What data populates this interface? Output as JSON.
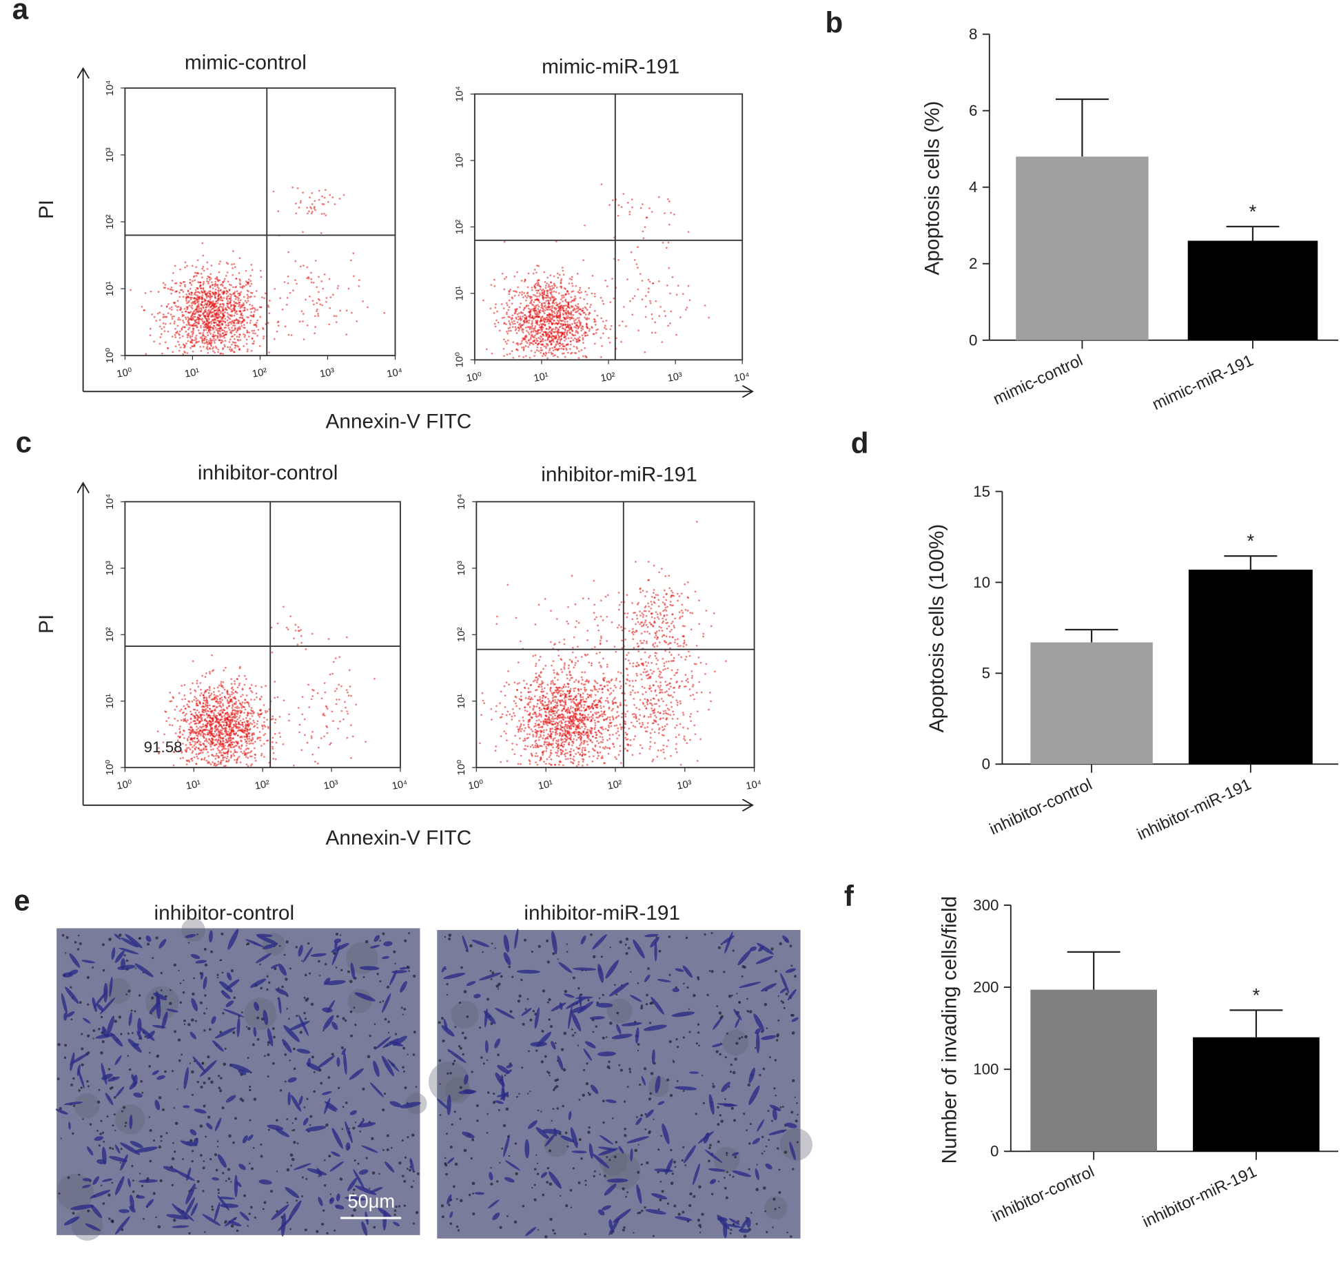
{
  "flow_cytometry": [
    {
      "panel_label": "a",
      "x_label": "Annexin-V  FITC",
      "y_label": "PI",
      "plots": [
        {
          "title": "mimic-control",
          "xlim": [
            1,
            10000
          ],
          "ylim": [
            1,
            10000
          ],
          "log_scale": true,
          "xticks": [
            {
              "value": 1,
              "label": "10⁰"
            },
            {
              "value": 10,
              "label": "10¹"
            },
            {
              "value": 100,
              "label": "10²"
            },
            {
              "value": 1000,
              "label": "10³"
            },
            {
              "value": 10000,
              "label": "10⁴"
            }
          ],
          "yticks": [
            {
              "value": 1,
              "label": "10⁰"
            },
            {
              "value": 10,
              "label": "10¹"
            },
            {
              "value": 100,
              "label": "10²"
            },
            {
              "value": 1000,
              "label": "10³"
            },
            {
              "value": 10000,
              "label": "10⁴"
            }
          ],
          "gate": [
            126,
            63
          ]
        },
        {
          "title": "mimic-miR-191",
          "xlim": [
            1,
            10000
          ],
          "ylim": [
            1,
            10000
          ],
          "log_scale": true,
          "xticks": [
            {
              "value": 1,
              "label": "10⁰"
            },
            {
              "value": 10,
              "label": "10¹"
            },
            {
              "value": 100,
              "label": "10²"
            },
            {
              "value": 1000,
              "label": "10³"
            },
            {
              "value": 10000,
              "label": "10⁴"
            }
          ],
          "yticks": [
            {
              "value": 1,
              "label": "10⁰"
            },
            {
              "value": 10,
              "label": "10¹"
            },
            {
              "value": 100,
              "label": "10²"
            },
            {
              "value": 1000,
              "label": "10³"
            },
            {
              "value": 10000,
              "label": "10⁴"
            }
          ],
          "gate": [
            126,
            63
          ]
        }
      ]
    },
    {
      "panel_label": "c",
      "x_label": "Annexin-V  FITC",
      "y_label": "PI",
      "plots": [
        {
          "title": "inhibitor-control",
          "xlim": [
            1,
            10000
          ],
          "ylim": [
            1,
            10000
          ],
          "log_scale": true,
          "xticks": [
            {
              "value": 1,
              "label": "10⁰"
            },
            {
              "value": 10,
              "label": "10¹"
            },
            {
              "value": 100,
              "label": "10²"
            },
            {
              "value": 1000,
              "label": "10³"
            },
            {
              "value": 10000,
              "label": "10⁴"
            }
          ],
          "yticks": [
            {
              "value": 1,
              "label": "10⁰"
            },
            {
              "value": 10,
              "label": "10¹"
            },
            {
              "value": 100,
              "label": "10²"
            },
            {
              "value": 1000,
              "label": "10³"
            },
            {
              "value": 10000,
              "label": "10⁴"
            }
          ],
          "gate": [
            129,
            67
          ],
          "annotation": "91.58"
        },
        {
          "title": "inhibitor-miR-191",
          "xlim": [
            1,
            10000
          ],
          "ylim": [
            1,
            10000
          ],
          "log_scale": true,
          "xticks": [
            {
              "value": 1,
              "label": "10⁰"
            },
            {
              "value": 10,
              "label": "10¹"
            },
            {
              "value": 100,
              "label": "10²"
            },
            {
              "value": 1000,
              "label": "10³"
            },
            {
              "value": 10000,
              "label": "10⁴"
            }
          ],
          "yticks": [
            {
              "value": 1,
              "label": "10⁰"
            },
            {
              "value": 10,
              "label": "10¹"
            },
            {
              "value": 100,
              "label": "10²"
            },
            {
              "value": 1000,
              "label": "10³"
            },
            {
              "value": 10000,
              "label": "10⁴"
            }
          ],
          "gate": [
            131,
            60
          ]
        }
      ]
    }
  ],
  "micrographs": {
    "panel_label": "e",
    "images": [
      {
        "title": "inhibitor-control"
      },
      {
        "title": "inhibitor-miR-191"
      }
    ],
    "scale_bar": "50μm"
  },
  "chart_data": [
    {
      "type": "bar",
      "panel_label": "b",
      "y_label": "Apoptosis cells (%)",
      "categories": [
        "mimic-control",
        "mimic-miR-191"
      ],
      "values": [
        4.8,
        2.6
      ],
      "errors": [
        1.5,
        0.37
      ],
      "colors": [
        "#a0a0a0",
        "#000000"
      ],
      "ylim": [
        0,
        8
      ],
      "yticks": [
        0,
        2,
        4,
        6,
        8
      ],
      "annotations": [
        {
          "category": "mimic-miR-191",
          "text": "*"
        }
      ]
    },
    {
      "type": "bar",
      "panel_label": "d",
      "y_label": "Apoptosis cells (100%)",
      "categories": [
        "inhibitor-control",
        "inhibitor-miR-191"
      ],
      "values": [
        6.7,
        10.7
      ],
      "errors": [
        0.7,
        0.75
      ],
      "colors": [
        "#a0a0a0",
        "#000000"
      ],
      "ylim": [
        0,
        15
      ],
      "yticks": [
        0,
        5,
        10,
        15
      ],
      "annotations": [
        {
          "category": "inhibitor-miR-191",
          "text": "*"
        }
      ]
    },
    {
      "type": "bar",
      "panel_label": "f",
      "y_label": "Number of invading cells/field",
      "categories": [
        "inhibitor-control",
        "inhibitor-miR-191"
      ],
      "values": [
        197,
        139
      ],
      "errors": [
        46,
        33
      ],
      "colors": [
        "#808080",
        "#000000"
      ],
      "ylim": [
        0,
        300
      ],
      "yticks": [
        0,
        100,
        200,
        300
      ],
      "annotations": [
        {
          "category": "inhibitor-miR-191",
          "text": "*"
        }
      ]
    }
  ]
}
